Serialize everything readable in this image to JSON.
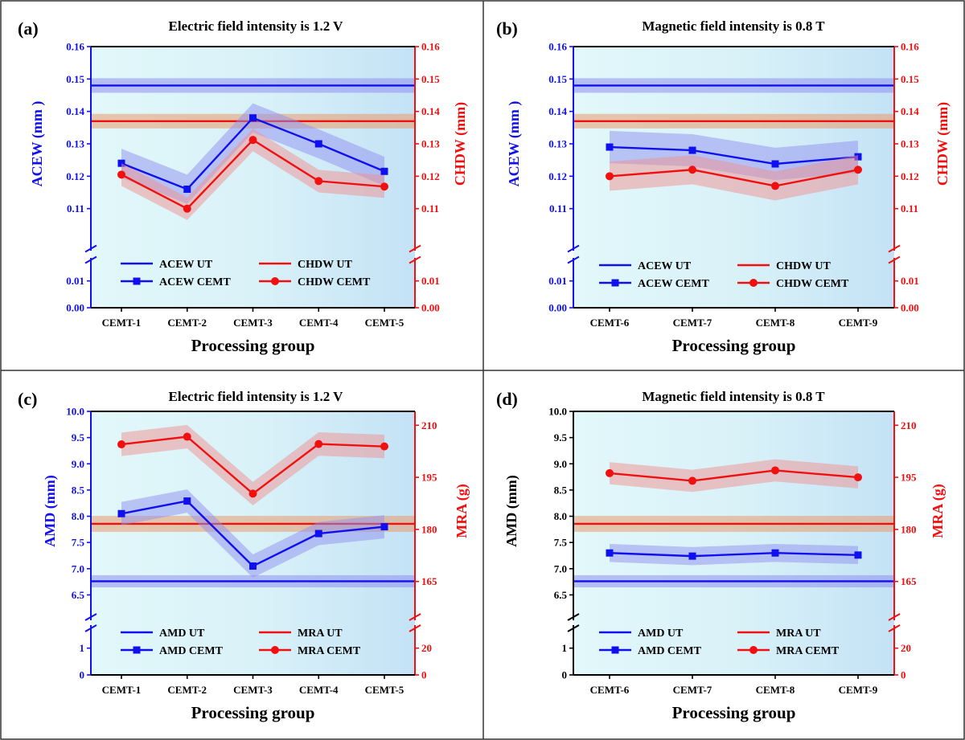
{
  "colors": {
    "blue": "#1010ee",
    "red": "#f01010",
    "blue_band": "#8f8ff0",
    "red_band": "#f09090",
    "ut_red_band": "#e89a6a",
    "plot_bg_left": "#dff7fa",
    "plot_bg_right": "#c9e6f7"
  },
  "x_axis_label": "Processing group",
  "chart_data": [
    {
      "id": "a",
      "letter": "(a)",
      "type": "line",
      "title": "Electric field intensity is 1.2 V",
      "xlabel": "Processing group",
      "categories": [
        "CEMT-1",
        "CEMT-2",
        "CEMT-3",
        "CEMT-4",
        "CEMT-5"
      ],
      "left_axis": {
        "label": "ACEW (mm )",
        "color_key": "blue",
        "upper_range": [
          0.1,
          0.16
        ],
        "upper_ticks": [
          0.11,
          0.12,
          0.13,
          0.14,
          0.15,
          0.16
        ],
        "upper_tick_labels": [
          "0.11",
          "0.12",
          "0.13",
          "0.14",
          "0.15",
          "0.16"
        ],
        "lower_range": [
          0,
          0.015
        ],
        "lower_ticks": [
          0,
          0.01
        ],
        "lower_tick_labels": [
          "0.00",
          "0.01"
        ]
      },
      "right_axis": {
        "label": "CHDW (mm)",
        "color_key": "red",
        "upper_range": [
          0.1,
          0.16
        ],
        "upper_ticks": [
          0.11,
          0.12,
          0.13,
          0.14,
          0.15,
          0.16
        ],
        "upper_tick_labels": [
          "0.11",
          "0.12",
          "0.13",
          "0.14",
          "0.15",
          "0.16"
        ],
        "lower_range": [
          0,
          0.015
        ],
        "lower_ticks": [
          0,
          0.01
        ],
        "lower_tick_labels": [
          "0.00",
          "0.01"
        ]
      },
      "series": [
        {
          "name": "ACEW UT",
          "axis": "left",
          "kind": "hline",
          "value": 0.148,
          "band": 0.0015,
          "color_key": "blue"
        },
        {
          "name": "CHDW UT",
          "axis": "right",
          "kind": "hline",
          "value": 0.137,
          "band": 0.0015,
          "color_key": "red"
        },
        {
          "name": "ACEW CEMT",
          "axis": "left",
          "kind": "line",
          "marker": "square",
          "values": [
            0.124,
            0.116,
            0.138,
            0.13,
            0.1215
          ],
          "band": 0.003,
          "color_key": "blue"
        },
        {
          "name": "CHDW CEMT",
          "axis": "right",
          "kind": "line",
          "marker": "circle",
          "values": [
            0.1205,
            0.11,
            0.1312,
            0.1185,
            0.1168
          ],
          "band": 0.002,
          "color_key": "red"
        }
      ]
    },
    {
      "id": "b",
      "letter": "(b)",
      "type": "line",
      "title": "Magnetic field intensity is 0.8 T",
      "xlabel": "Processing group",
      "categories": [
        "CEMT-6",
        "CEMT-7",
        "CEMT-8",
        "CEMT-9"
      ],
      "left_axis": {
        "label": "ACEW (mm )",
        "color_key": "blue",
        "upper_range": [
          0.1,
          0.16
        ],
        "upper_ticks": [
          0.11,
          0.12,
          0.13,
          0.14,
          0.15,
          0.16
        ],
        "upper_tick_labels": [
          "0.11",
          "0.12",
          "0.13",
          "0.14",
          "0.15",
          "0.16"
        ],
        "lower_range": [
          0,
          0.015
        ],
        "lower_ticks": [
          0,
          0.01
        ],
        "lower_tick_labels": [
          "0.00",
          "0.01"
        ]
      },
      "right_axis": {
        "label": "CHDW (mm)",
        "color_key": "red",
        "upper_range": [
          0.1,
          0.16
        ],
        "upper_ticks": [
          0.11,
          0.12,
          0.13,
          0.14,
          0.15,
          0.16
        ],
        "upper_tick_labels": [
          "0.11",
          "0.12",
          "0.13",
          "0.14",
          "0.15",
          "0.16"
        ],
        "lower_range": [
          0,
          0.015
        ],
        "lower_ticks": [
          0,
          0.01
        ],
        "lower_tick_labels": [
          "0.00",
          "0.01"
        ]
      },
      "series": [
        {
          "name": "ACEW UT",
          "axis": "left",
          "kind": "hline",
          "value": 0.148,
          "band": 0.0015,
          "color_key": "blue"
        },
        {
          "name": "CHDW UT",
          "axis": "right",
          "kind": "hline",
          "value": 0.137,
          "band": 0.0015,
          "color_key": "red"
        },
        {
          "name": "ACEW CEMT",
          "axis": "left",
          "kind": "line",
          "marker": "square",
          "values": [
            0.129,
            0.128,
            0.1238,
            0.126
          ],
          "band": 0.0035,
          "color_key": "blue"
        },
        {
          "name": "CHDW CEMT",
          "axis": "right",
          "kind": "line",
          "marker": "circle",
          "values": [
            0.12,
            0.122,
            0.117,
            0.122
          ],
          "band": 0.003,
          "color_key": "red"
        }
      ]
    },
    {
      "id": "c",
      "letter": "(c)",
      "type": "line",
      "title": "Electric field intensity is 1.2 V",
      "xlabel": "Processing group",
      "categories": [
        "CEMT-1",
        "CEMT-2",
        "CEMT-3",
        "CEMT-4",
        "CEMT-5"
      ],
      "left_axis": {
        "label": "AMD (mm)",
        "color_key": "blue",
        "upper_range": [
          6.2,
          10.0
        ],
        "upper_ticks": [
          6.5,
          7.0,
          7.5,
          8.0,
          8.5,
          9.0,
          9.5,
          10.0
        ],
        "upper_tick_labels": [
          "6.5",
          "7.0",
          "7.5",
          "8.0",
          "8.5",
          "9.0",
          "9.5",
          "10.0"
        ],
        "lower_range": [
          0,
          1.5
        ],
        "lower_ticks": [
          0,
          1
        ],
        "lower_tick_labels": [
          "0",
          "1"
        ]
      },
      "right_axis": {
        "label": "MRA (g)",
        "color_key": "red",
        "upper_range": [
          156.6,
          214.0
        ],
        "upper_ticks": [
          165,
          180,
          195,
          210
        ],
        "upper_tick_labels": [
          "165",
          "180",
          "195",
          "210"
        ],
        "lower_range": [
          0,
          30
        ],
        "lower_ticks": [
          0,
          20
        ],
        "lower_tick_labels": [
          "0",
          "20"
        ]
      },
      "series": [
        {
          "name": "AMD UT",
          "axis": "left",
          "kind": "hline",
          "value": 6.76,
          "band": 0.07,
          "color_key": "blue"
        },
        {
          "name": "MRA UT",
          "axis": "right",
          "kind": "hline",
          "value": 181.6,
          "band": 1.6,
          "color_key": "red"
        },
        {
          "name": "AMD CEMT",
          "axis": "left",
          "kind": "line",
          "marker": "square",
          "values": [
            8.05,
            8.29,
            7.05,
            7.67,
            7.8
          ],
          "band": 0.13,
          "color_key": "blue"
        },
        {
          "name": "MRA CEMT",
          "axis": "right",
          "kind": "line",
          "marker": "circle",
          "values": [
            204.5,
            206.7,
            190.3,
            204.6,
            203.9
          ],
          "band": 2.0,
          "color_key": "red"
        }
      ]
    },
    {
      "id": "d",
      "letter": "(d)",
      "type": "line",
      "title": "Magnetic field intensity is 0.8 T",
      "xlabel": "Processing group",
      "categories": [
        "CEMT-6",
        "CEMT-7",
        "CEMT-8",
        "CEMT-9"
      ],
      "left_axis": {
        "label": "AMD (mm)",
        "color_key": "black",
        "upper_range": [
          6.2,
          10.0
        ],
        "upper_ticks": [
          6.5,
          7.0,
          7.5,
          8.0,
          8.5,
          9.0,
          9.5,
          10.0
        ],
        "upper_tick_labels": [
          "6.5",
          "7.0",
          "7.5",
          "8.0",
          "8.5",
          "9.0",
          "9.5",
          "10.0"
        ],
        "lower_range": [
          0,
          1.5
        ],
        "lower_ticks": [
          0,
          1
        ],
        "lower_tick_labels": [
          "0",
          "1"
        ]
      },
      "right_axis": {
        "label": "MRA (g)",
        "color_key": "red",
        "upper_range": [
          156.6,
          214.0
        ],
        "upper_ticks": [
          165,
          180,
          195,
          210
        ],
        "upper_tick_labels": [
          "165",
          "180",
          "195",
          "210"
        ],
        "lower_range": [
          0,
          30
        ],
        "lower_ticks": [
          0,
          20
        ],
        "lower_tick_labels": [
          "0",
          "20"
        ]
      },
      "series": [
        {
          "name": "AMD UT",
          "axis": "left",
          "kind": "hline",
          "value": 6.76,
          "band": 0.07,
          "color_key": "blue"
        },
        {
          "name": "MRA UT",
          "axis": "right",
          "kind": "hline",
          "value": 181.6,
          "band": 1.6,
          "color_key": "red"
        },
        {
          "name": "AMD CEMT",
          "axis": "left",
          "kind": "line",
          "marker": "square",
          "values": [
            7.3,
            7.24,
            7.3,
            7.26
          ],
          "band": 0.08,
          "color_key": "blue"
        },
        {
          "name": "MRA CEMT",
          "axis": "right",
          "kind": "line",
          "marker": "circle",
          "values": [
            196.2,
            194.0,
            197.0,
            195.0
          ],
          "band": 1.8,
          "color_key": "red"
        }
      ]
    }
  ]
}
